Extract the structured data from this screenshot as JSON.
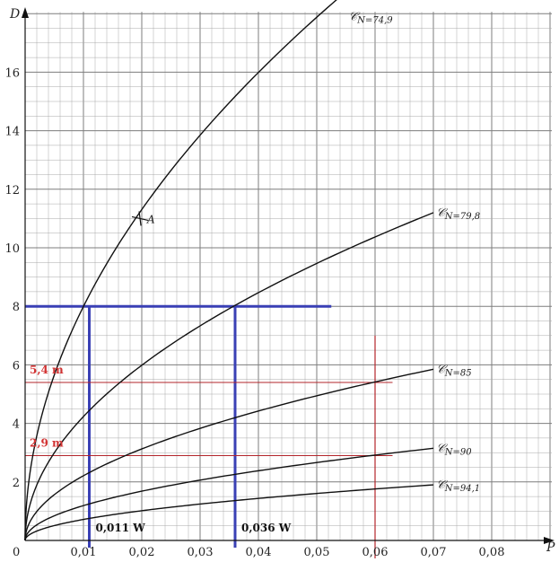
{
  "chart_data": {
    "type": "line",
    "xlabel": "P",
    "ylabel": "D",
    "xlim": [
      0,
      0.09
    ],
    "ylim": [
      0,
      18
    ],
    "grid": true,
    "x_ticks": [
      "0",
      "0,01",
      "0,02",
      "0,03",
      "0,04",
      "0,05",
      "0,06",
      "0,07",
      "0,08"
    ],
    "x_tick_values": [
      0,
      0.01,
      0.02,
      0.03,
      0.04,
      0.05,
      0.06,
      0.07,
      0.08
    ],
    "y_ticks": [
      "2",
      "4",
      "6",
      "8",
      "10",
      "12",
      "14",
      "16"
    ],
    "y_tick_values": [
      2,
      4,
      6,
      8,
      10,
      12,
      14,
      16
    ],
    "series": [
      {
        "label_main": "𝒞",
        "label_sub": "N=74,9",
        "label_at": [
          0.0555,
          17.9
        ],
        "end_x": 0.055,
        "end_y": 18.75
      },
      {
        "label_main": "𝒞",
        "label_sub": "N=79,8",
        "label_at": [
          0.0705,
          11.2
        ],
        "end_x": 0.07,
        "end_y": 11.2
      },
      {
        "label_main": "𝒞",
        "label_sub": "N=85",
        "label_at": [
          0.0705,
          5.85
        ],
        "end_x": 0.07,
        "end_y": 5.85
      },
      {
        "label_main": "𝒞",
        "label_sub": "N=90",
        "label_at": [
          0.0705,
          3.15
        ],
        "end_x": 0.07,
        "end_y": 3.15
      },
      {
        "label_main": "𝒞",
        "label_sub": "N=94,1",
        "label_at": [
          0.0705,
          1.9
        ],
        "end_x": 0.07,
        "end_y": 1.9
      }
    ],
    "point": {
      "label": "A",
      "x": 0.0197,
      "y": 11.0
    },
    "blue_guides": {
      "y": 8,
      "x_end": 0.0525,
      "x_values": [
        0.011,
        0.036
      ],
      "labels": [
        "0,011 W",
        "0,036 W"
      ]
    },
    "red_guides": {
      "x": 0.06,
      "x_line_top": 7.0,
      "y_values": [
        5.4,
        2.9
      ],
      "x_end": 0.063,
      "labels": [
        "5,4 m",
        "2,9 m"
      ]
    },
    "colors": {
      "grid": "#a9a9a9",
      "grid_major": "#7d7d7d",
      "curve": "#111111",
      "blue": "#3a40b5",
      "red": "#b3252b",
      "red_text": "#d23232"
    }
  }
}
